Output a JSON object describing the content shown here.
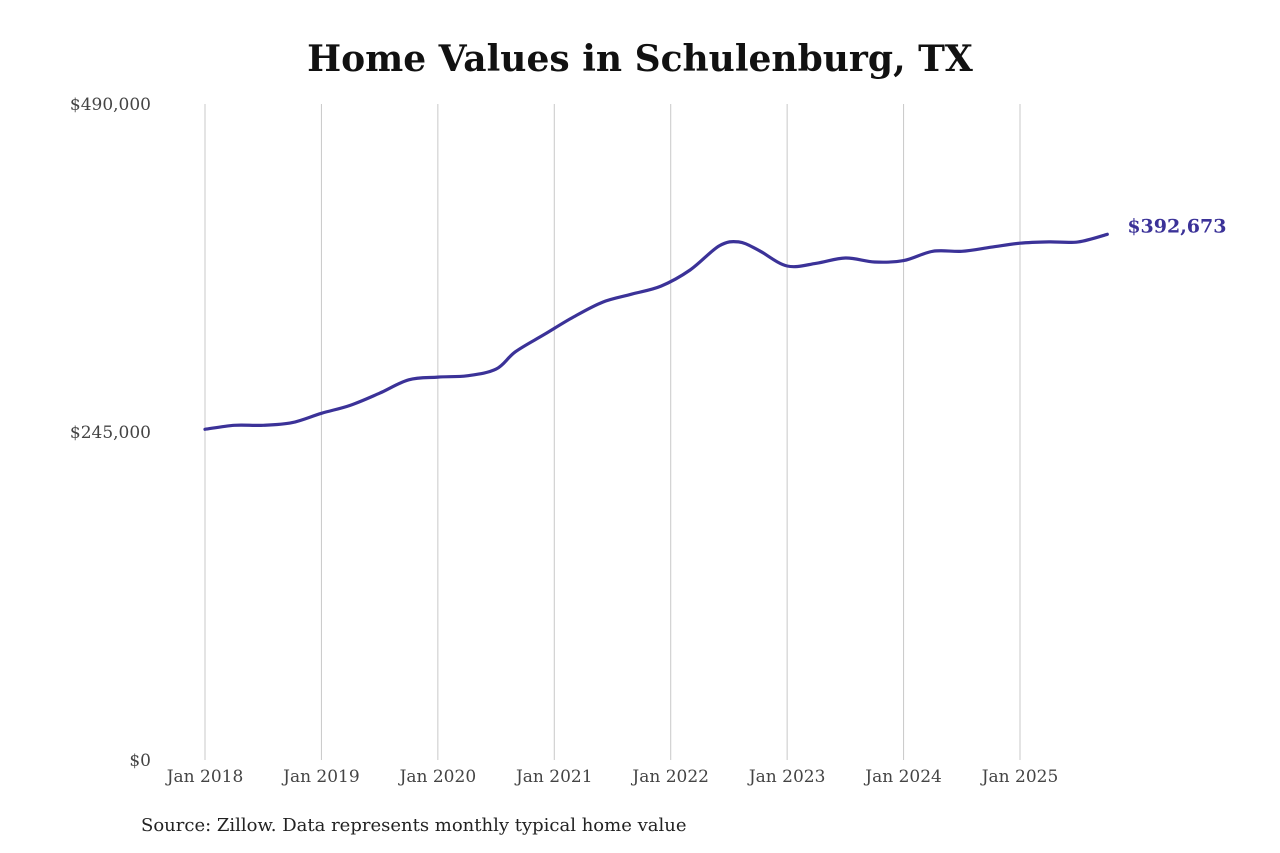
{
  "chart_data": {
    "type": "line",
    "title": "Home Values in Schulenburg, TX",
    "source": "Source: Zillow. Data represents monthly typical home value",
    "xlabel": "",
    "ylabel": "",
    "ylim": [
      0,
      490000
    ],
    "x_tick_labels": [
      "Jan 2018",
      "Jan 2019",
      "Jan 2020",
      "Jan 2021",
      "Jan 2022",
      "Jan 2023",
      "Jan 2024",
      "Jan 2025"
    ],
    "y_tick_labels": [
      "$0",
      "$245,000",
      "$490,000"
    ],
    "y_ticks": [
      0,
      245000,
      490000
    ],
    "grid": "vertical",
    "line_color": "#3b3298",
    "end_label": "$392,673",
    "series": [
      {
        "values": [
          {
            "x": "2018-01",
            "y": 247000
          },
          {
            "x": "2018-04",
            "y": 250000
          },
          {
            "x": "2018-07",
            "y": 250000
          },
          {
            "x": "2018-10",
            "y": 252000
          },
          {
            "x": "2019-01",
            "y": 259000
          },
          {
            "x": "2019-04",
            "y": 265000
          },
          {
            "x": "2019-07",
            "y": 274000
          },
          {
            "x": "2019-10",
            "y": 284000
          },
          {
            "x": "2020-01",
            "y": 286000
          },
          {
            "x": "2020-04",
            "y": 287000
          },
          {
            "x": "2020-07",
            "y": 292000
          },
          {
            "x": "2020-09",
            "y": 305000
          },
          {
            "x": "2020-12",
            "y": 318000
          },
          {
            "x": "2021-03",
            "y": 331000
          },
          {
            "x": "2021-06",
            "y": 342000
          },
          {
            "x": "2021-09",
            "y": 348000
          },
          {
            "x": "2021-12",
            "y": 354000
          },
          {
            "x": "2022-03",
            "y": 366000
          },
          {
            "x": "2022-06",
            "y": 384000
          },
          {
            "x": "2022-08",
            "y": 387000
          },
          {
            "x": "2022-10",
            "y": 381000
          },
          {
            "x": "2023-01",
            "y": 369000
          },
          {
            "x": "2023-04",
            "y": 371000
          },
          {
            "x": "2023-07",
            "y": 375000
          },
          {
            "x": "2023-10",
            "y": 372000
          },
          {
            "x": "2024-01",
            "y": 373000
          },
          {
            "x": "2024-04",
            "y": 380000
          },
          {
            "x": "2024-07",
            "y": 380000
          },
          {
            "x": "2024-10",
            "y": 383000
          },
          {
            "x": "2025-01",
            "y": 386000
          },
          {
            "x": "2025-04",
            "y": 387000
          },
          {
            "x": "2025-07",
            "y": 387000
          },
          {
            "x": "2025-10",
            "y": 392673
          }
        ]
      }
    ]
  }
}
